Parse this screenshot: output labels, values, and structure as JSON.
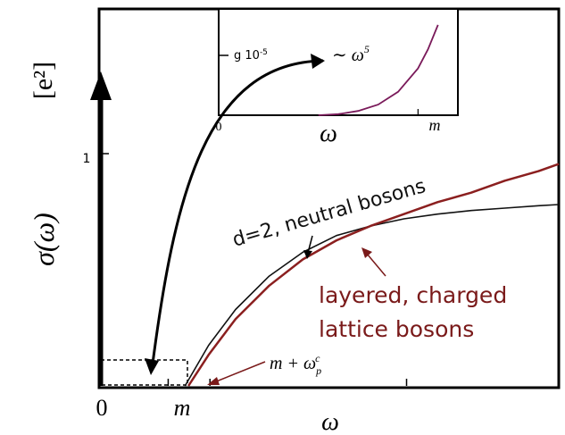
{
  "chart_data": {
    "type": "line",
    "title": "",
    "xlabel": "ω",
    "ylabel": "σ(ω)",
    "y_units": "[e²]",
    "x_ticks": [
      {
        "x": 0,
        "label": "0"
      },
      {
        "x": 1,
        "label": "m"
      }
    ],
    "y_ticks": [
      {
        "y": 1,
        "label": "1"
      }
    ],
    "xlim": [
      0,
      6.8
    ],
    "ylim": [
      0,
      1.58
    ],
    "grid": false,
    "series": [
      {
        "name": "d=2, neutral bosons",
        "color": "#111111",
        "x": [
          1.25,
          1.6,
          2.0,
          2.5,
          3.0,
          3.5,
          4.0,
          4.5,
          5.0,
          5.5,
          6.0,
          6.5,
          6.8
        ],
        "y": [
          0.0,
          0.17,
          0.32,
          0.46,
          0.56,
          0.63,
          0.67,
          0.7,
          0.72,
          0.735,
          0.745,
          0.755,
          0.76
        ]
      },
      {
        "name": "layered, charged lattice bosons",
        "color": "#8b1f1f",
        "x": [
          1.3,
          1.6,
          2.0,
          2.5,
          3.0,
          3.5,
          4.0,
          4.5,
          5.0,
          5.5,
          6.0,
          6.5,
          6.8
        ],
        "y": [
          0.0,
          0.13,
          0.28,
          0.42,
          0.53,
          0.61,
          0.67,
          0.72,
          0.77,
          0.81,
          0.86,
          0.9,
          0.93
        ]
      }
    ],
    "annotations": [
      {
        "text": "d=2, neutral bosons",
        "color": "#111111"
      },
      {
        "text_lines": [
          "layered, charged",
          "lattice bosons"
        ],
        "color": "#7a1a1a"
      },
      {
        "text": "m + ωpc",
        "main": "m + ω",
        "sub": "p",
        "sup": "c"
      }
    ],
    "inset": {
      "type": "line",
      "xlabel": "ω",
      "x_ticks": [
        {
          "x": 0,
          "label": "0"
        },
        {
          "x": 1,
          "label": "m"
        }
      ],
      "y_tick_label": "g 10",
      "y_tick_exp": "-5",
      "curve_label_main": "∼ ω",
      "curve_label_exp": "5",
      "xlim": [
        0,
        1.2
      ],
      "ylim": [
        0,
        1.0
      ],
      "series": [
        {
          "name": "",
          "color": "#7a1a5a",
          "x": [
            0.5,
            0.6,
            0.7,
            0.8,
            0.9,
            1.0,
            1.05,
            1.1
          ],
          "y": [
            0.0,
            0.01,
            0.04,
            0.1,
            0.22,
            0.44,
            0.62,
            0.85
          ]
        }
      ]
    }
  },
  "colors": {
    "neutral": "#111111",
    "charged": "#8b1f1f",
    "inset_curve": "#7a1a5a"
  }
}
